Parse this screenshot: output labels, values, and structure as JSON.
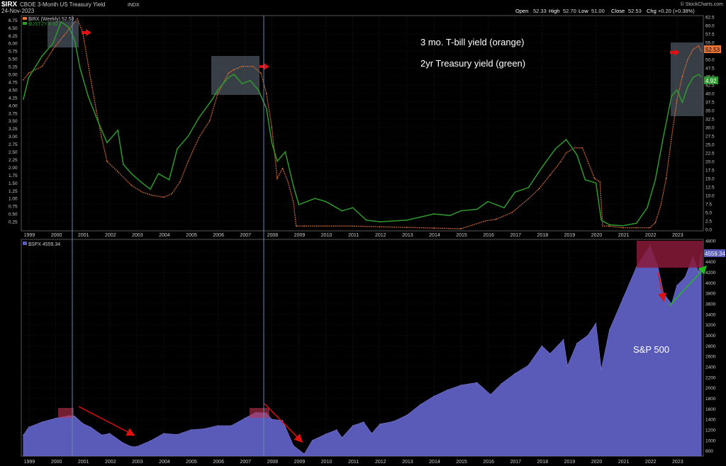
{
  "header": {
    "symbol": "$IRX",
    "name": "CBOE 3-Month US Treasury Yield",
    "exchange": "INDX",
    "date": "24-Nov-2023",
    "credit": "© StockCharts.com",
    "quote": {
      "open_label": "Open",
      "open": "52.33",
      "high_label": "High",
      "high": "52.70",
      "low_label": "Low",
      "low": "51.00",
      "close_label": "Close",
      "close": "52.53",
      "chg_label": "Chg",
      "chg": "+0.20 (+0.38%)"
    },
    "legend_irx": "$IRX (Weekly) 52.53",
    "legend_ust": "$UST2Y 4.92"
  },
  "annotations": {
    "tbill": "3 mo. T-bill yield (orange)",
    "twoyr": "2yr Treasury yield (green)",
    "sp500": "S&P 500"
  },
  "lower_header": {
    "legend_spx": "$SPX 4559.34"
  },
  "badges": {
    "irx_last": "52.53",
    "ust_last": "4.92",
    "spx_last": "4559.34"
  },
  "colors": {
    "tbill": "#e8743a",
    "twoyr": "#2e9a2e",
    "spx_fill": "#5a5ab8",
    "red_arrow": "#e01010",
    "green_arrow": "#22bb22",
    "highlight": "#8a1a3a"
  },
  "chart_data": [
    {
      "type": "line",
      "title": "CBOE 3-Month US Treasury Yield",
      "x_ticks": [
        "1999",
        "2000",
        "2001",
        "2002",
        "2003",
        "2004",
        "2005",
        "2006",
        "2007",
        "2008",
        "2009",
        "2010",
        "2011",
        "2012",
        "2013",
        "2014",
        "2015",
        "2016",
        "2017",
        "2018",
        "2019",
        "2020",
        "2021",
        "2022",
        "2023"
      ],
      "left_ticks": [
        "0.25",
        "0.50",
        "0.75",
        "1.00",
        "1.25",
        "1.50",
        "1.75",
        "2.00",
        "2.25",
        "2.50",
        "2.75",
        "3.00",
        "3.25",
        "3.50",
        "3.75",
        "4.00",
        "4.25",
        "4.50",
        "4.75",
        "5.00",
        "5.25",
        "5.50",
        "5.75",
        "6.00",
        "6.25",
        "6.50",
        "6.75"
      ],
      "right_ticks": [
        "0.0",
        "2.5",
        "5.0",
        "7.5",
        "10.0",
        "12.5",
        "15.0",
        "17.5",
        "20.0",
        "22.5",
        "25.0",
        "27.5",
        "30.0",
        "32.5",
        "35.0",
        "37.5",
        "40.0",
        "42.5",
        "45.0",
        "47.5",
        "50.0",
        "52.5",
        "55.0",
        "57.5",
        "60.0",
        "62.5"
      ],
      "ylim_left": [
        0,
        6.85
      ],
      "ylim_right": [
        0,
        62.5
      ],
      "series": [
        {
          "name": "$IRX (Weekly)",
          "style": "dotted",
          "x": [
            1998.8,
            1999.0,
            1999.5,
            1999.9,
            2000.3,
            2000.5,
            2000.8,
            2001.0,
            2001.3,
            2001.5,
            2001.7,
            2001.9,
            2002.3,
            2002.8,
            2003.2,
            2003.6,
            2004.0,
            2004.3,
            2004.6,
            2004.9,
            2005.3,
            2005.7,
            2006.0,
            2006.4,
            2006.6,
            2006.9,
            2007.3,
            2007.6,
            2007.8,
            2008.0,
            2008.2,
            2008.4,
            2008.6,
            2008.8,
            2008.9,
            2009.2,
            2010.0,
            2011.0,
            2012.0,
            2013.0,
            2014.0,
            2015.0,
            2015.9,
            2016.3,
            2016.9,
            2017.5,
            2017.9,
            2018.3,
            2018.7,
            2018.9,
            2019.2,
            2019.5,
            2019.7,
            2019.95,
            2020.15,
            2020.25,
            2020.5,
            2021.0,
            2021.5,
            2022.0,
            2022.2,
            2022.4,
            2022.6,
            2022.8,
            2023.0,
            2023.2,
            2023.4,
            2023.6,
            2023.8,
            2023.9
          ],
          "values": [
            44,
            46,
            48,
            53,
            57,
            59,
            62,
            58,
            44,
            35,
            27,
            20,
            17,
            13,
            11,
            10,
            9.5,
            10.5,
            14,
            20,
            27,
            32,
            40,
            46,
            47,
            48,
            48,
            46,
            40,
            30,
            15,
            18,
            14,
            8,
            1,
            1,
            1,
            1,
            0.8,
            0.6,
            0.4,
            0.2,
            2.5,
            3,
            5,
            9,
            12,
            16,
            20,
            22.5,
            24,
            24,
            20,
            15,
            14,
            1,
            1,
            0.5,
            0.5,
            0.5,
            2,
            7,
            15,
            27,
            38,
            45,
            50,
            53,
            54,
            52.5
          ]
        },
        {
          "name": "$UST2Y",
          "x": [
            1998.8,
            1999.0,
            1999.5,
            1999.9,
            2000.2,
            2000.5,
            2000.7,
            2000.9,
            2001.2,
            2001.6,
            2001.9,
            2002.3,
            2002.5,
            2002.8,
            2003.2,
            2003.5,
            2003.8,
            2004.2,
            2004.5,
            2004.9,
            2005.3,
            2005.8,
            2006.0,
            2006.4,
            2006.6,
            2006.9,
            2007.2,
            2007.5,
            2007.8,
            2008.0,
            2008.2,
            2008.5,
            2008.8,
            2009.0,
            2009.3,
            2009.6,
            2010.0,
            2010.6,
            2011.0,
            2011.5,
            2012.0,
            2013.0,
            2014.0,
            2014.6,
            2015.0,
            2015.6,
            2016.0,
            2016.6,
            2017.0,
            2017.5,
            2018.0,
            2018.5,
            2018.9,
            2019.3,
            2019.6,
            2020.0,
            2020.2,
            2020.5,
            2021.0,
            2021.5,
            2021.9,
            2022.2,
            2022.5,
            2022.8,
            2023.0,
            2023.2,
            2023.4,
            2023.6,
            2023.8,
            2023.9
          ],
          "values": [
            4.2,
            4.9,
            5.6,
            6.0,
            6.7,
            6.5,
            6.1,
            5.2,
            4.3,
            3.4,
            2.8,
            3.2,
            2.1,
            1.8,
            1.5,
            1.3,
            1.8,
            1.6,
            2.6,
            3.0,
            3.6,
            4.2,
            4.5,
            4.9,
            5.0,
            4.7,
            4.8,
            4.5,
            3.9,
            2.8,
            2.2,
            2.5,
            1.4,
            0.8,
            0.9,
            1.0,
            0.9,
            0.6,
            0.7,
            0.3,
            0.25,
            0.3,
            0.5,
            0.45,
            0.6,
            0.65,
            0.9,
            0.7,
            1.2,
            1.35,
            2.0,
            2.6,
            2.9,
            2.4,
            1.6,
            1.5,
            0.3,
            0.15,
            0.12,
            0.2,
            0.7,
            1.6,
            3.0,
            4.3,
            4.5,
            4.1,
            4.6,
            4.9,
            5.0,
            4.92
          ]
        }
      ]
    },
    {
      "type": "area",
      "series_name": "$SPX",
      "x_ticks": [
        "1999",
        "2000",
        "2001",
        "2002",
        "2003",
        "2004",
        "2005",
        "2006",
        "2007",
        "2008",
        "2009",
        "2010",
        "2011",
        "2012",
        "2013",
        "2014",
        "2015",
        "2016",
        "2017",
        "2018",
        "2019",
        "2020",
        "2021",
        "2022",
        "2023"
      ],
      "y_ticks": [
        "800",
        "1000",
        "1200",
        "1400",
        "1600",
        "1800",
        "2000",
        "2200",
        "2400",
        "2600",
        "2800",
        "3000",
        "3200",
        "3400",
        "3600",
        "3800",
        "4000",
        "4200",
        "4400",
        "4600",
        "4800"
      ],
      "ylim": [
        700,
        4800
      ],
      "series": [
        {
          "name": "$SPX",
          "x": [
            1998.8,
            1999.0,
            1999.5,
            2000.0,
            2000.5,
            2000.7,
            2001.0,
            2001.3,
            2001.7,
            2002.0,
            2002.5,
            2002.8,
            2003.0,
            2003.5,
            2004.0,
            2004.5,
            2005.0,
            2005.5,
            2006.0,
            2006.5,
            2007.0,
            2007.4,
            2007.8,
            2008.0,
            2008.4,
            2008.8,
            2009.2,
            2009.5,
            2010.0,
            2010.4,
            2010.6,
            2011.0,
            2011.4,
            2011.7,
            2012.0,
            2012.5,
            2013.0,
            2013.5,
            2014.0,
            2014.5,
            2015.0,
            2015.6,
            2016.1,
            2016.5,
            2017.0,
            2017.5,
            2018.0,
            2018.3,
            2018.8,
            2018.95,
            2019.3,
            2019.7,
            2020.0,
            2020.2,
            2020.5,
            2021.0,
            2021.5,
            2022.0,
            2022.3,
            2022.5,
            2022.8,
            2023.0,
            2023.3,
            2023.6,
            2023.8,
            2023.9
          ],
          "values": [
            1100,
            1250,
            1350,
            1420,
            1470,
            1460,
            1320,
            1250,
            1100,
            1130,
            950,
            880,
            880,
            990,
            1130,
            1110,
            1200,
            1220,
            1280,
            1280,
            1420,
            1530,
            1520,
            1400,
            1380,
            900,
            740,
            1000,
            1120,
            1200,
            1050,
            1280,
            1350,
            1130,
            1310,
            1360,
            1480,
            1680,
            1840,
            1960,
            2050,
            2100,
            1870,
            2080,
            2270,
            2430,
            2800,
            2650,
            2920,
            2420,
            2850,
            3000,
            3230,
            2350,
            3100,
            3700,
            4300,
            4700,
            4300,
            3800,
            3600,
            3950,
            4100,
            4500,
            4200,
            4559
          ]
        }
      ]
    }
  ]
}
